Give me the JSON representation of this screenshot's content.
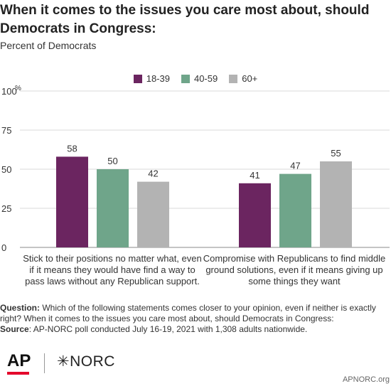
{
  "header": {
    "title": "When it comes to the issues you care most about, should Democrats in Congress:",
    "subtitle": "Percent of Democrats"
  },
  "legend": [
    {
      "label": "18-39",
      "color": "#6b2560"
    },
    {
      "label": "40-59",
      "color": "#6fa58a"
    },
    {
      "label": "60+",
      "color": "#b3b3b3"
    }
  ],
  "chart_data": {
    "type": "bar",
    "categories": [
      "Stick to their positions no matter what, even if it means they would have find a way to pass laws without any Republican support.",
      "Compromise with Republicans to find middle ground solutions, even if it means giving up some things they want"
    ],
    "series": [
      {
        "name": "18-39",
        "values": [
          58,
          41
        ],
        "color": "#6b2560"
      },
      {
        "name": "40-59",
        "values": [
          50,
          47
        ],
        "color": "#6fa58a"
      },
      {
        "name": "60+",
        "values": [
          42,
          55
        ],
        "color": "#b3b3b3"
      }
    ],
    "ylim": [
      0,
      100
    ],
    "yticks": [
      0,
      25,
      50,
      75,
      100
    ],
    "yunit": "%",
    "grid": true,
    "legend_position": "top-center"
  },
  "notes": {
    "question_label": "Question:",
    "question_text": "Which of the following statements comes closer to your opinion, even if neither is exactly right? When it comes to the issues you care most about, should Democrats in Congress:",
    "source_label": "Source",
    "source_text": ": AP-NORC poll conducted July 16-19, 2021 with 1,308 adults nationwide."
  },
  "footer": {
    "ap_logo": "AP",
    "norc_logo": "✳NORC",
    "website": "APNORC.org"
  }
}
